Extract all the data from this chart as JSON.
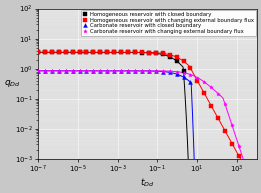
{
  "legend": [
    "Homogeneous reservoir with closed boundary",
    "Homogeneous reservoir with changing external boundary flux",
    "Carbonate reservoir with closed boundary",
    "Carbonate reservoir with changing external boundary flux"
  ],
  "colors": [
    "black",
    "red",
    "blue",
    "magenta"
  ],
  "markers": [
    "s",
    "s",
    "^",
    "*"
  ],
  "bg_color": "#e0e0e0",
  "fig_color": "#c8c8c8",
  "xlim": [
    1e-07,
    10000.0
  ],
  "ylim": [
    0.001,
    100.0
  ],
  "xlabel": "t_{Dd}",
  "ylabel": "q_{Dd}",
  "n_markers": 32,
  "lw": 0.7,
  "ms": 2.8
}
